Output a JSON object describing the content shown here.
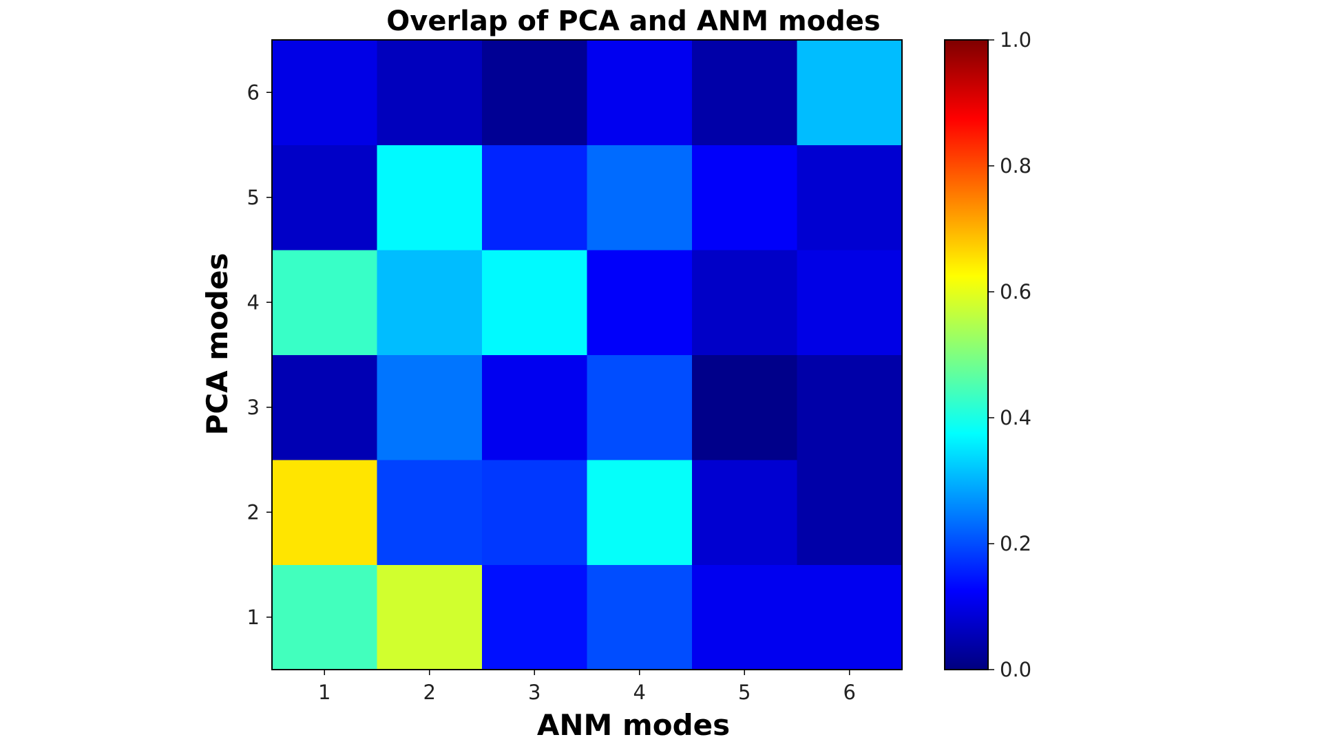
{
  "chart_data": {
    "type": "heatmap",
    "title": "Overlap of PCA and ANM modes",
    "xlabel": "ANM modes",
    "ylabel": "PCA modes",
    "x_categories": [
      "1",
      "2",
      "3",
      "4",
      "5",
      "6"
    ],
    "y_categories": [
      "1",
      "2",
      "3",
      "4",
      "5",
      "6"
    ],
    "values": [
      [
        0.44,
        0.58,
        0.14,
        0.2,
        0.11,
        0.11
      ],
      [
        0.65,
        0.19,
        0.18,
        0.38,
        0.08,
        0.04
      ],
      [
        0.05,
        0.24,
        0.11,
        0.2,
        0.01,
        0.04
      ],
      [
        0.43,
        0.31,
        0.37,
        0.12,
        0.07,
        0.1
      ],
      [
        0.07,
        0.37,
        0.16,
        0.23,
        0.12,
        0.08
      ],
      [
        0.1,
        0.06,
        0.02,
        0.11,
        0.04,
        0.31
      ]
    ],
    "colormap": "jet",
    "colorbar": {
      "range": [
        0.0,
        1.0
      ],
      "ticks": [
        "0.0",
        "0.2",
        "0.4",
        "0.6",
        "0.8",
        "1.0"
      ]
    },
    "grid": false
  }
}
